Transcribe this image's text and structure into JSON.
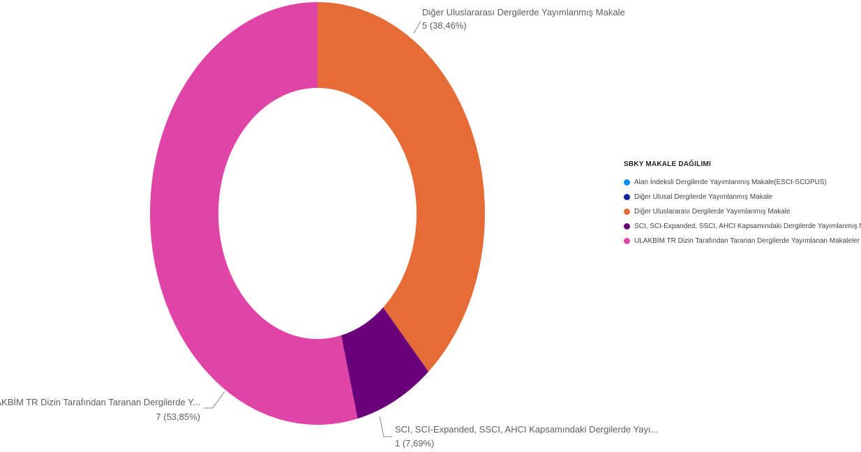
{
  "chart_data": {
    "type": "pie",
    "variant": "donut",
    "legend": {
      "title": "SBKY MAKALE DAĞILIMI",
      "placement": "right"
    },
    "slices": [
      {
        "name": "Alan İndeksli Dergilerde Yayımlanmış Makale(ESCI-SCOPUS)",
        "legend_label": "Alan İndeksli Dergilerde Yayımlanmış Makale(ESCI-SCOPUS)",
        "value": 0,
        "percent_label": "",
        "color": "#118dff"
      },
      {
        "name": "Diğer Ulusal Dergilerde Yayımlanmış Makale",
        "legend_label": "Diğer Ulusal Dergilerde Yayımlanmış Makale",
        "value": 0,
        "percent_label": "",
        "color": "#12239e"
      },
      {
        "name": "Diğer Uluslararası Dergilerde Yayımlanmış Makale",
        "legend_label": "Diğer Uluslararası Dergilerde Yayımlanmış Makale",
        "value": 5,
        "percent_label": "5 (38,46%)",
        "color": "#e66c37"
      },
      {
        "name": "SCI, SCI-Expanded, SSCI, AHCI Kapsamındaki Dergilerde Yayı...",
        "legend_label": "SCI, SCI-Expanded, SSCI, AHCI Kapsamındaki Dergilerde Yayımlanmış Makale",
        "value": 1,
        "percent_label": "1 (7,69%)",
        "color": "#6b007b"
      },
      {
        "name": "ULAKBİM TR Dizin Tarafından Taranan Dergilerde Y...",
        "legend_label": "ULAKBİM TR Dizin Tarafından Taranan Dergilerde Yayımlanan Makaleler",
        "value": 7,
        "percent_label": "7 (53,85%)",
        "color": "#e044a7"
      }
    ]
  }
}
